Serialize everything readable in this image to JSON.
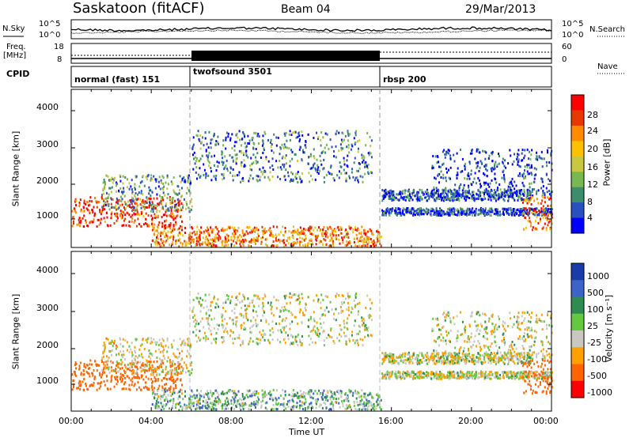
{
  "header": {
    "station": "Saskatoon (fitACF)",
    "beam": "Beam 04",
    "date": "29/Mar/2013"
  },
  "noise_panel": {
    "left_label": "N.Sky",
    "right_label": "N.Search",
    "left_ticks": [
      "10^5",
      "10^0"
    ],
    "right_ticks": [
      "10^5",
      "10^0"
    ]
  },
  "freq_panel": {
    "left_label_top": "Freq.",
    "left_label_bottom": "[MHz]",
    "left_ticks": [
      "18",
      "8"
    ],
    "right_label": "Nave",
    "right_ticks": [
      "60",
      "0"
    ]
  },
  "cpid": {
    "label": "CPID",
    "programs": [
      {
        "name": "normal (fast) 151",
        "start": "00:00",
        "end": "06:00"
      },
      {
        "name": "twofsound 3501",
        "start": "06:00",
        "end": "15:30"
      },
      {
        "name": "rbsp 200",
        "start": "15:30",
        "end": "24:00"
      }
    ]
  },
  "power_panel": {
    "ylabel": "Slant Range [km]",
    "yticks": [
      "4000",
      "3000",
      "2000",
      "1000"
    ],
    "colorbar_label": "Power [dB]",
    "colorbar_ticks": [
      "28",
      "24",
      "20",
      "16",
      "12",
      "8",
      "4"
    ],
    "colors": [
      "#ff0000",
      "#e83800",
      "#ff8c00",
      "#ffc000",
      "#c8c840",
      "#78b850",
      "#3c8c6e",
      "#2850c0",
      "#0000ff"
    ]
  },
  "velocity_panel": {
    "ylabel": "Slant Range [km]",
    "yticks": [
      "4000",
      "3000",
      "2000",
      "1000"
    ],
    "colorbar_label": "Velocity [m s⁻¹]",
    "colorbar_ticks": [
      "1000",
      "500",
      "100",
      "25",
      "-25",
      "-100",
      "-500",
      "-1000"
    ],
    "colors": [
      "#1a3ca8",
      "#3c64c8",
      "#2e8c50",
      "#64c840",
      "#c8c8c0",
      "#ffa000",
      "#ff6400",
      "#ff0000"
    ]
  },
  "x_axis": {
    "label": "Time UT",
    "ticks": [
      "00:00",
      "04:00",
      "08:00",
      "12:00",
      "16:00",
      "20:00",
      "00:00"
    ]
  },
  "chart_data": {
    "type": "heatmap",
    "title": "Saskatoon (fitACF)",
    "x_range": [
      "00:00",
      "24:00"
    ],
    "y_range_km": [
      200,
      4500
    ],
    "scatter_regions": [
      {
        "name": "near-range band",
        "t_start_h": 0.0,
        "t_end_h": 5.5,
        "range_km": [
          800,
          1600
        ],
        "power_db": 28,
        "velocity": -300
      },
      {
        "name": "ascending echo trail",
        "t_start_h": 1.5,
        "t_end_h": 6.0,
        "range_km": [
          1200,
          2200
        ],
        "power_db": 12,
        "velocity": -25
      },
      {
        "name": "upper arc",
        "t_start_h": 6.0,
        "t_end_h": 15.0,
        "range_km": [
          2000,
          3400
        ],
        "power_db": 10,
        "velocity": 0
      },
      {
        "name": "ground scatter floor",
        "t_start_h": 4.0,
        "t_end_h": 15.5,
        "range_km": [
          250,
          800
        ],
        "power_db": 24,
        "velocity": 50
      },
      {
        "name": "late band upper",
        "t_start_h": 15.5,
        "t_end_h": 23.0,
        "range_km": [
          1500,
          1800
        ],
        "power_db": 8,
        "velocity": 0
      },
      {
        "name": "late band lower",
        "t_start_h": 15.5,
        "t_end_h": 24.0,
        "range_km": [
          1100,
          1300
        ],
        "power_db": 8,
        "velocity": 0
      },
      {
        "name": "evening arc",
        "t_start_h": 18.0,
        "t_end_h": 24.0,
        "range_km": [
          1600,
          2900
        ],
        "power_db": 6,
        "velocity": 0
      },
      {
        "name": "end near-range",
        "t_start_h": 22.5,
        "t_end_h": 24.0,
        "range_km": [
          700,
          1600
        ],
        "power_db": 26,
        "velocity": -300
      }
    ]
  }
}
